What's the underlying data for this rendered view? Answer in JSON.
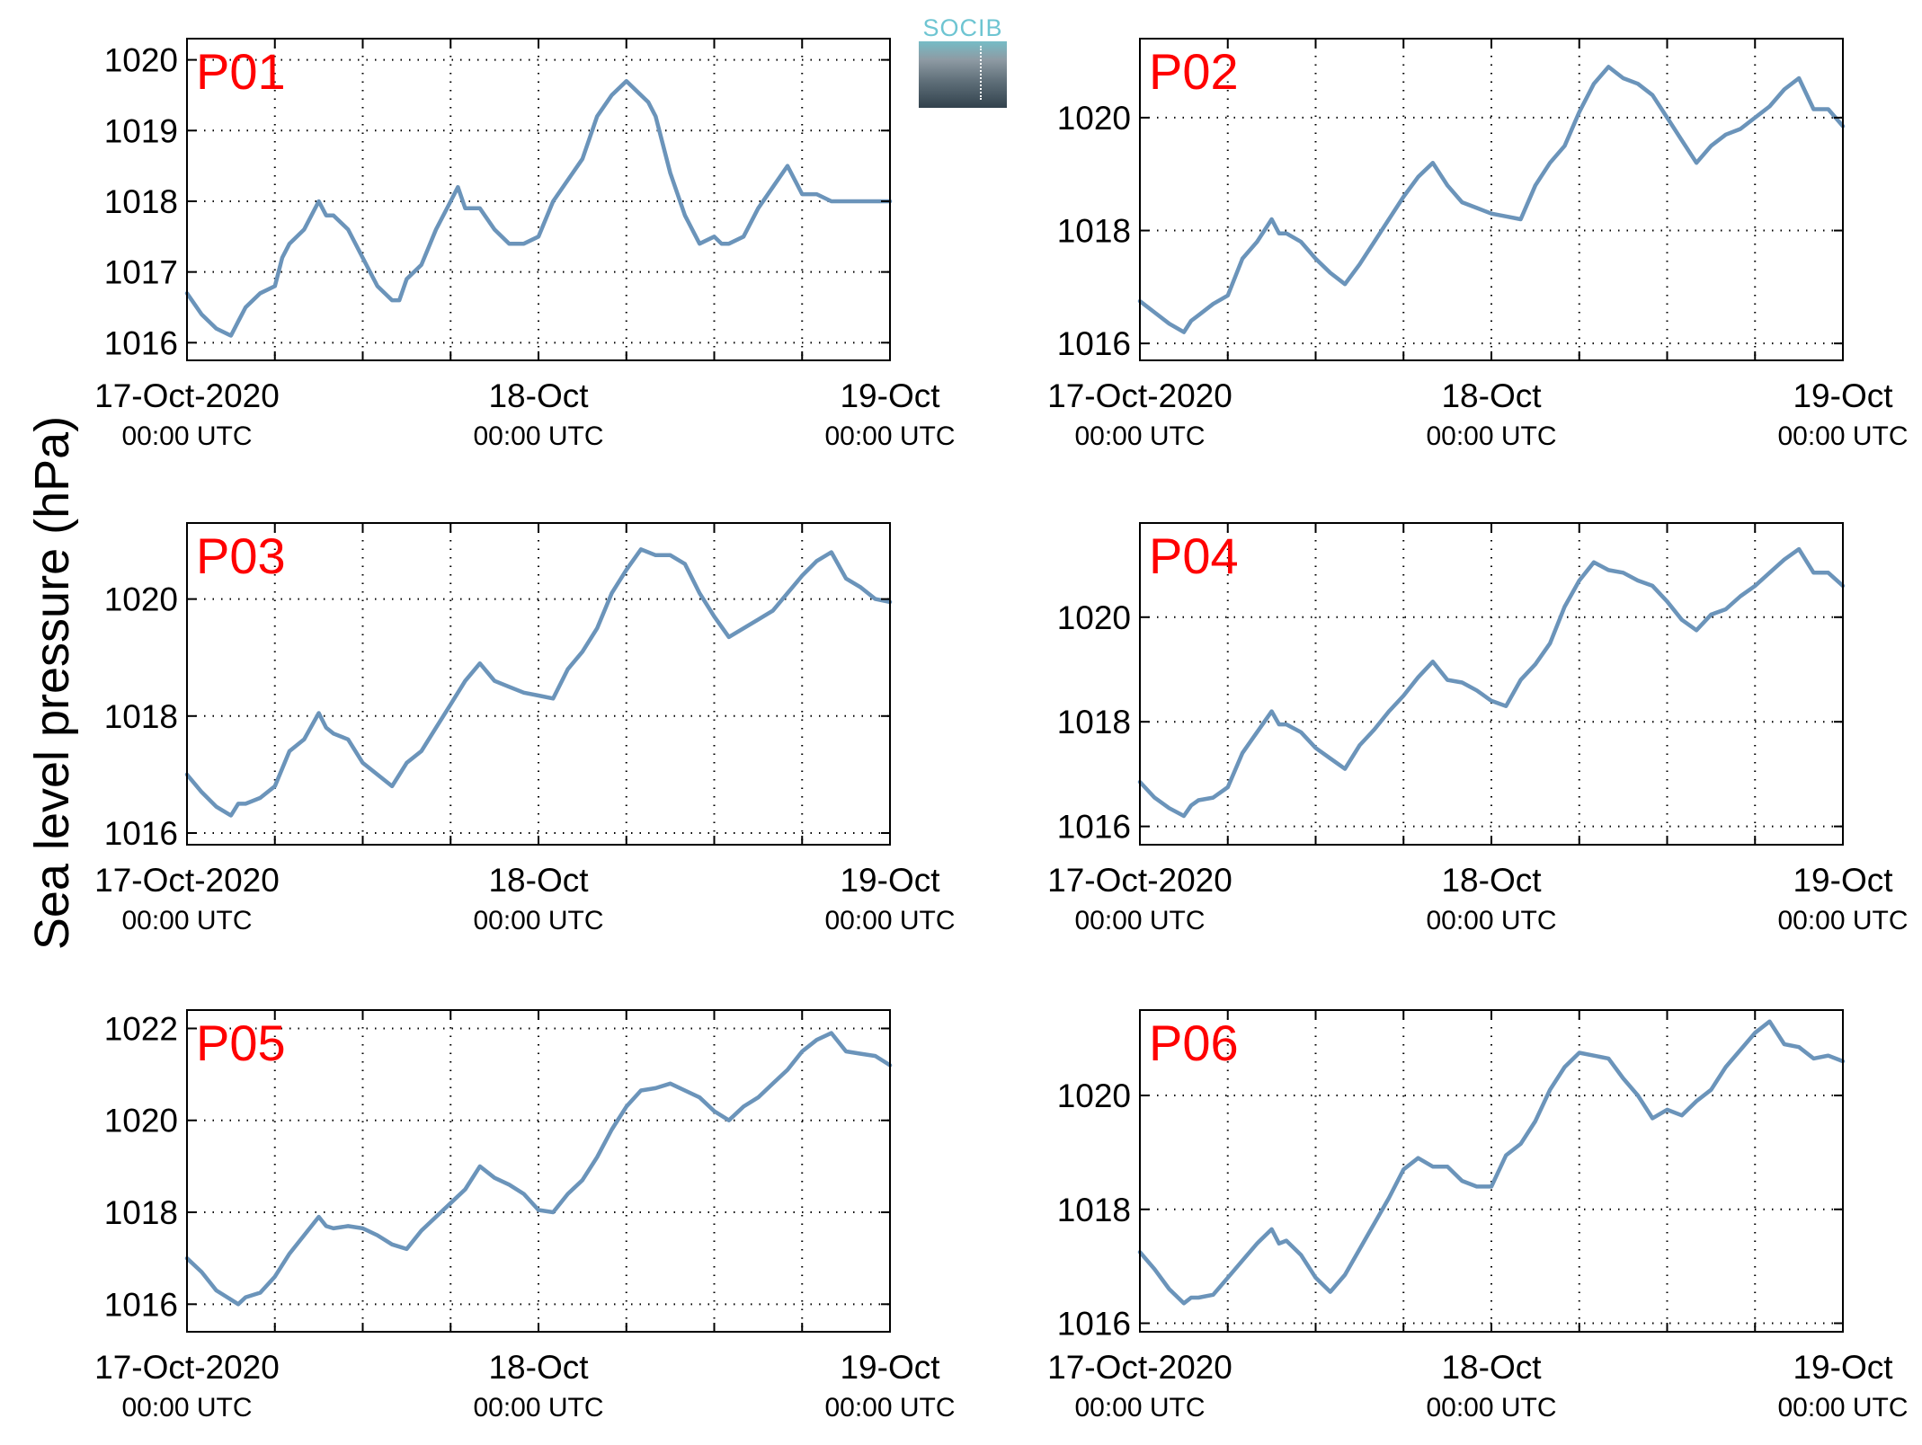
{
  "ylabel": "Sea level pressure (hPa)",
  "logo_text": "SOCIB",
  "colors": {
    "line": "#6b94ba",
    "station_label": "#ff0000",
    "grid": "#000000"
  },
  "chart_data": [
    {
      "type": "line",
      "title": "P01",
      "ylim": [
        1015.75,
        1020.3
      ],
      "yticks": [
        1016,
        1017,
        1018,
        1019,
        1020
      ],
      "xlim": [
        0,
        48
      ],
      "xticks": [
        {
          "at": 0,
          "label": "17-Oct-2020",
          "sublabel": "00:00 UTC"
        },
        {
          "at": 24,
          "label": "18-Oct",
          "sublabel": "00:00 UTC"
        },
        {
          "at": 48,
          "label": "19-Oct",
          "sublabel": "00:00 UTC"
        }
      ],
      "xgrid": [
        6,
        12,
        18,
        24,
        30,
        36,
        42
      ],
      "x": [
        0,
        1,
        2,
        3,
        3.5,
        4,
        5,
        6,
        6.5,
        7,
        8,
        9,
        9.5,
        10,
        11,
        12,
        13,
        14,
        14.5,
        15,
        16,
        17,
        18,
        18.5,
        19,
        20,
        21,
        22,
        23,
        24,
        25,
        26,
        27,
        28,
        29,
        30,
        31,
        31.5,
        32,
        33,
        34,
        35,
        36,
        36.5,
        37,
        38,
        39,
        40,
        41,
        42,
        43,
        44,
        45,
        46,
        47,
        48
      ],
      "y": [
        1016.7,
        1016.4,
        1016.2,
        1016.1,
        1016.3,
        1016.5,
        1016.7,
        1016.8,
        1017.2,
        1017.4,
        1017.6,
        1018.0,
        1017.8,
        1017.8,
        1017.6,
        1017.2,
        1016.8,
        1016.6,
        1016.6,
        1016.9,
        1017.1,
        1017.6,
        1018.0,
        1018.2,
        1017.9,
        1017.9,
        1017.6,
        1017.4,
        1017.4,
        1017.5,
        1018.0,
        1018.3,
        1018.6,
        1019.2,
        1019.5,
        1019.7,
        1019.5,
        1019.4,
        1019.2,
        1018.4,
        1017.8,
        1017.4,
        1017.5,
        1017.4,
        1017.4,
        1017.5,
        1017.9,
        1018.2,
        1018.5,
        1018.1,
        1018.1,
        1018.0,
        1018.0,
        1018.0,
        1018.0,
        1018.0
      ]
    },
    {
      "type": "line",
      "title": "P02",
      "ylim": [
        1015.7,
        1021.4
      ],
      "yticks": [
        1016,
        1018,
        1020
      ],
      "xlim": [
        0,
        48
      ],
      "xticks": [
        {
          "at": 0,
          "label": "17-Oct-2020",
          "sublabel": "00:00 UTC"
        },
        {
          "at": 24,
          "label": "18-Oct",
          "sublabel": "00:00 UTC"
        },
        {
          "at": 48,
          "label": "19-Oct",
          "sublabel": "00:00 UTC"
        }
      ],
      "xgrid": [
        6,
        12,
        18,
        24,
        30,
        36,
        42
      ],
      "x": [
        0,
        1,
        2,
        3,
        3.5,
        4,
        5,
        6,
        7,
        8,
        9,
        9.5,
        10,
        11,
        12,
        13,
        14,
        15,
        16,
        17,
        18,
        19,
        20,
        21,
        22,
        23,
        24,
        25,
        26,
        27,
        28,
        29,
        30,
        31,
        32,
        33,
        34,
        35,
        36,
        37,
        38,
        39,
        40,
        41,
        42,
        43,
        44,
        45,
        46,
        47,
        48
      ],
      "y": [
        1016.75,
        1016.55,
        1016.35,
        1016.2,
        1016.4,
        1016.5,
        1016.7,
        1016.85,
        1017.5,
        1017.8,
        1018.2,
        1017.95,
        1017.95,
        1017.8,
        1017.5,
        1017.25,
        1017.05,
        1017.4,
        1017.8,
        1018.2,
        1018.6,
        1018.95,
        1019.2,
        1018.8,
        1018.5,
        1018.4,
        1018.3,
        1018.25,
        1018.2,
        1018.8,
        1019.2,
        1019.5,
        1020.1,
        1020.6,
        1020.9,
        1020.7,
        1020.6,
        1020.4,
        1020.0,
        1019.6,
        1019.2,
        1019.5,
        1019.7,
        1019.8,
        1020.0,
        1020.2,
        1020.5,
        1020.7,
        1020.15,
        1020.15,
        1019.85
      ]
    },
    {
      "type": "line",
      "title": "P03",
      "ylim": [
        1015.8,
        1021.3
      ],
      "yticks": [
        1016,
        1018,
        1020
      ],
      "xlim": [
        0,
        48
      ],
      "xticks": [
        {
          "at": 0,
          "label": "17-Oct-2020",
          "sublabel": "00:00 UTC"
        },
        {
          "at": 24,
          "label": "18-Oct",
          "sublabel": "00:00 UTC"
        },
        {
          "at": 48,
          "label": "19-Oct",
          "sublabel": "00:00 UTC"
        }
      ],
      "xgrid": [
        6,
        12,
        18,
        24,
        30,
        36,
        42
      ],
      "x": [
        0,
        1,
        2,
        3,
        3.5,
        4,
        5,
        6,
        6.5,
        7,
        8,
        9,
        9.5,
        10,
        11,
        12,
        13,
        14,
        15,
        16,
        17,
        18,
        19,
        20,
        21,
        22,
        23,
        24,
        25,
        26,
        27,
        28,
        29,
        30,
        31,
        32,
        33,
        34,
        35,
        36,
        37,
        38,
        39,
        40,
        41,
        42,
        43,
        44,
        45,
        46,
        47,
        48
      ],
      "y": [
        1017.0,
        1016.7,
        1016.45,
        1016.3,
        1016.5,
        1016.5,
        1016.6,
        1016.8,
        1017.1,
        1017.4,
        1017.6,
        1018.05,
        1017.8,
        1017.7,
        1017.6,
        1017.2,
        1017.0,
        1016.8,
        1017.2,
        1017.4,
        1017.8,
        1018.2,
        1018.6,
        1018.9,
        1018.6,
        1018.5,
        1018.4,
        1018.35,
        1018.3,
        1018.8,
        1019.1,
        1019.5,
        1020.1,
        1020.5,
        1020.85,
        1020.75,
        1020.75,
        1020.6,
        1020.1,
        1019.7,
        1019.35,
        1019.5,
        1019.65,
        1019.8,
        1020.1,
        1020.4,
        1020.65,
        1020.8,
        1020.35,
        1020.2,
        1020.0,
        1019.95
      ]
    },
    {
      "type": "line",
      "title": "P04",
      "ylim": [
        1015.65,
        1021.8
      ],
      "yticks": [
        1016,
        1018,
        1020
      ],
      "xlim": [
        0,
        48
      ],
      "xticks": [
        {
          "at": 0,
          "label": "17-Oct-2020",
          "sublabel": "00:00 UTC"
        },
        {
          "at": 24,
          "label": "18-Oct",
          "sublabel": "00:00 UTC"
        },
        {
          "at": 48,
          "label": "19-Oct",
          "sublabel": "00:00 UTC"
        }
      ],
      "xgrid": [
        6,
        12,
        18,
        24,
        30,
        36,
        42
      ],
      "x": [
        0,
        1,
        2,
        3,
        3.5,
        4,
        5,
        6,
        7,
        8,
        9,
        9.5,
        10,
        11,
        12,
        13,
        14,
        15,
        16,
        17,
        18,
        19,
        20,
        21,
        22,
        23,
        24,
        25,
        26,
        27,
        28,
        29,
        30,
        31,
        32,
        33,
        34,
        35,
        36,
        37,
        38,
        39,
        40,
        41,
        42,
        43,
        44,
        45,
        46,
        47,
        48
      ],
      "y": [
        1016.85,
        1016.55,
        1016.35,
        1016.2,
        1016.4,
        1016.5,
        1016.55,
        1016.75,
        1017.4,
        1017.8,
        1018.2,
        1017.95,
        1017.95,
        1017.8,
        1017.5,
        1017.3,
        1017.1,
        1017.55,
        1017.85,
        1018.2,
        1018.5,
        1018.85,
        1019.15,
        1018.8,
        1018.75,
        1018.6,
        1018.4,
        1018.3,
        1018.8,
        1019.1,
        1019.5,
        1020.2,
        1020.7,
        1021.05,
        1020.9,
        1020.85,
        1020.7,
        1020.6,
        1020.3,
        1019.95,
        1019.75,
        1020.05,
        1020.15,
        1020.4,
        1020.6,
        1020.85,
        1021.1,
        1021.3,
        1020.85,
        1020.85,
        1020.6
      ]
    },
    {
      "type": "line",
      "title": "P05",
      "ylim": [
        1015.4,
        1022.4
      ],
      "yticks": [
        1016,
        1018,
        1020,
        1022
      ],
      "xlim": [
        0,
        48
      ],
      "xticks": [
        {
          "at": 0,
          "label": "17-Oct-2020",
          "sublabel": "00:00 UTC"
        },
        {
          "at": 24,
          "label": "18-Oct",
          "sublabel": "00:00 UTC"
        },
        {
          "at": 48,
          "label": "19-Oct",
          "sublabel": "00:00 UTC"
        }
      ],
      "xgrid": [
        6,
        12,
        18,
        24,
        30,
        36,
        42
      ],
      "x": [
        0,
        1,
        2,
        3,
        3.5,
        4,
        5,
        6,
        7,
        8,
        9,
        9.5,
        10,
        11,
        12,
        13,
        14,
        15,
        16,
        17,
        18,
        19,
        20,
        21,
        22,
        23,
        24,
        25,
        26,
        27,
        28,
        29,
        30,
        31,
        32,
        33,
        34,
        35,
        36,
        37,
        38,
        39,
        40,
        41,
        42,
        43,
        44,
        45,
        46,
        47,
        48
      ],
      "y": [
        1017.0,
        1016.7,
        1016.3,
        1016.1,
        1016.0,
        1016.15,
        1016.25,
        1016.6,
        1017.1,
        1017.5,
        1017.9,
        1017.7,
        1017.65,
        1017.7,
        1017.65,
        1017.5,
        1017.3,
        1017.2,
        1017.6,
        1017.9,
        1018.2,
        1018.5,
        1019.0,
        1018.75,
        1018.6,
        1018.4,
        1018.05,
        1018.0,
        1018.4,
        1018.7,
        1019.2,
        1019.8,
        1020.3,
        1020.65,
        1020.7,
        1020.8,
        1020.65,
        1020.5,
        1020.2,
        1020.0,
        1020.3,
        1020.5,
        1020.8,
        1021.1,
        1021.5,
        1021.75,
        1021.9,
        1021.5,
        1021.45,
        1021.4,
        1021.2
      ]
    },
    {
      "type": "line",
      "title": "P06",
      "ylim": [
        1015.85,
        1021.5
      ],
      "yticks": [
        1016,
        1018,
        1020
      ],
      "xlim": [
        0,
        48
      ],
      "xticks": [
        {
          "at": 0,
          "label": "17-Oct-2020",
          "sublabel": "00:00 UTC"
        },
        {
          "at": 24,
          "label": "18-Oct",
          "sublabel": "00:00 UTC"
        },
        {
          "at": 48,
          "label": "19-Oct",
          "sublabel": "00:00 UTC"
        }
      ],
      "xgrid": [
        6,
        12,
        18,
        24,
        30,
        36,
        42
      ],
      "x": [
        0,
        1,
        2,
        3,
        3.5,
        4,
        5,
        6,
        7,
        8,
        9,
        9.5,
        10,
        11,
        12,
        13,
        14,
        15,
        16,
        17,
        18,
        19,
        20,
        21,
        22,
        23,
        24,
        25,
        26,
        27,
        28,
        29,
        30,
        31,
        32,
        33,
        34,
        35,
        36,
        37,
        38,
        39,
        40,
        41,
        42,
        43,
        44,
        45,
        46,
        47,
        48
      ],
      "y": [
        1017.25,
        1016.95,
        1016.6,
        1016.35,
        1016.45,
        1016.45,
        1016.5,
        1016.8,
        1017.1,
        1017.4,
        1017.65,
        1017.4,
        1017.45,
        1017.2,
        1016.8,
        1016.55,
        1016.85,
        1017.3,
        1017.75,
        1018.2,
        1018.7,
        1018.9,
        1018.75,
        1018.75,
        1018.5,
        1018.4,
        1018.4,
        1018.95,
        1019.15,
        1019.55,
        1020.1,
        1020.5,
        1020.75,
        1020.7,
        1020.65,
        1020.3,
        1020.0,
        1019.6,
        1019.75,
        1019.65,
        1019.9,
        1020.1,
        1020.5,
        1020.8,
        1021.1,
        1021.3,
        1020.9,
        1020.85,
        1020.65,
        1020.7,
        1020.6
      ]
    }
  ]
}
